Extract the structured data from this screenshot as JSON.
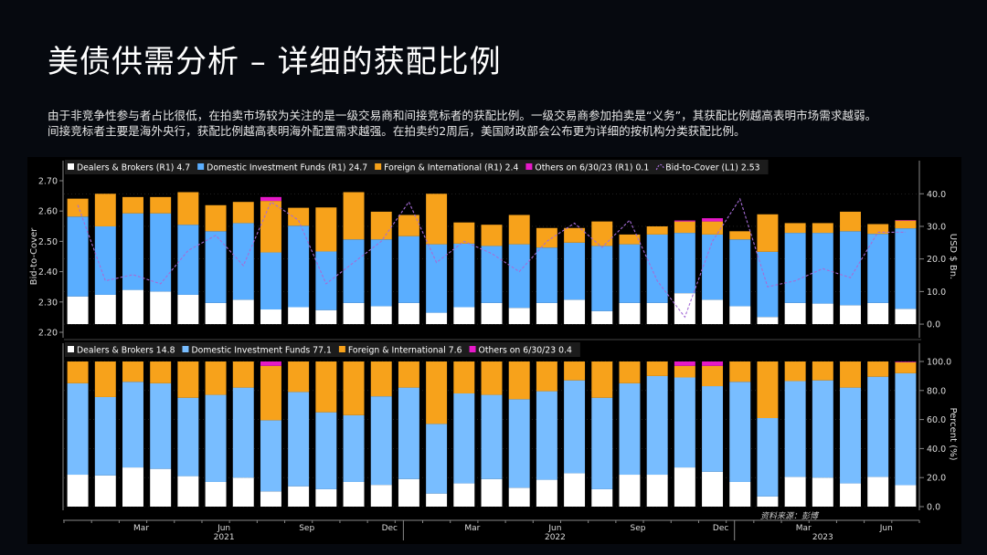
{
  "page": {
    "title": "美债供需分析 – 详细的获配比例",
    "description_line1": "由于非竞争性参与者占比很低，在拍卖市场较为关注的是一级交易商和间接竞标者的获配比例。一级交易商参加拍卖是“义务”，其获配比例越高表明市场需求越弱。",
    "description_line2": "间接竞标者主要是海外央行，获配比例越高表明海外配置需求越强。在拍卖约2周后，美国财政部会公布更为详细的按机构分类获配比例。",
    "source": "资料来源：彭博"
  },
  "colors": {
    "dealers": "#ffffff",
    "domestic": "#5aaeff",
    "domestic_pct": "#78bdff",
    "foreign": "#f7a21b",
    "others": "#e619c8",
    "btc": "#a56cd6",
    "axis": "#888888",
    "grid": "#333333"
  },
  "chart_data": [
    {
      "type": "bar",
      "stacked": true,
      "legend": [
        {
          "label": "Dealers & Brokers  (R1) 4.7",
          "color": "#ffffff",
          "shape": "square"
        },
        {
          "label": "Domestic Investment Funds (R1) 24.7",
          "color": "#5aaeff",
          "shape": "square"
        },
        {
          "label": "Foreign & International (R1) 2.4",
          "color": "#f7a21b",
          "shape": "square"
        },
        {
          "label": "Others on 6/30/23 (R1) 0.1",
          "color": "#e619c8",
          "shape": "square"
        },
        {
          "label": "Bid-to-Cover (L1) 2.53",
          "color": "#a56cd6",
          "shape": "line"
        }
      ],
      "legend_placement": "top-left",
      "ylabel_left": "Bid-to-Cover",
      "ylabel_right": "USD $ Bn.",
      "left_ticks": [
        "2.70",
        "2.60",
        "2.50",
        "2.40",
        "2.30",
        "2.20"
      ],
      "left_range": [
        2.2,
        2.7
      ],
      "right_ticks": [
        "40.0",
        "30.0",
        "20.0",
        "10.0",
        "0.0"
      ],
      "right_range": [
        -2.5,
        44
      ],
      "series": [
        {
          "name": "Dealers & Brokers",
          "color": "#ffffff",
          "values": [
            8.5,
            9,
            10.5,
            10,
            9,
            6.5,
            7.5,
            4.5,
            5.2,
            4.3,
            6.5,
            5.5,
            6.5,
            3.5,
            5.2,
            6.5,
            5,
            6.5,
            7.5,
            4,
            6.5,
            6.5,
            9.5,
            7.5,
            5.5,
            2.2,
            6.5,
            6.3,
            5.8,
            6.5,
            4.7
          ]
        },
        {
          "name": "Domestic Investment Funds",
          "color": "#5aaeff",
          "values": [
            24.5,
            21,
            23.5,
            24,
            21.5,
            22,
            23.5,
            17.5,
            25,
            18,
            19.5,
            20.5,
            20.5,
            21,
            19.5,
            17.5,
            19.5,
            17,
            17.5,
            20,
            18,
            21,
            18.5,
            20,
            20.5,
            20,
            21.5,
            21.7,
            22.7,
            21.2,
            24.7
          ]
        },
        {
          "name": "Foreign & International",
          "color": "#f7a21b",
          "values": [
            5.5,
            10,
            5,
            5,
            10,
            8,
            6.5,
            15.8,
            5.5,
            13.5,
            14.5,
            8.5,
            6.5,
            15.5,
            6.5,
            6.5,
            9,
            6,
            4.5,
            7.5,
            3,
            2.5,
            3.5,
            4,
            2.5,
            11.5,
            3,
            3,
            6,
            3,
            2.4
          ]
        },
        {
          "name": "Others on 6/30/23",
          "color": "#e619c8",
          "values": [
            0,
            0,
            0,
            0,
            0,
            0,
            0,
            1.2,
            0,
            0,
            0,
            0,
            0,
            0,
            0,
            0,
            0,
            0,
            0,
            0,
            0,
            0,
            0.3,
            1,
            0,
            0,
            0,
            0,
            0,
            0,
            0.1
          ]
        },
        {
          "name": "Bid-to-Cover",
          "color": "#a56cd6",
          "axis": "left",
          "style": "dashed-line",
          "values": [
            2.62,
            2.37,
            2.39,
            2.36,
            2.47,
            2.52,
            2.42,
            2.63,
            2.57,
            2.36,
            2.43,
            2.5,
            2.63,
            2.43,
            2.5,
            2.46,
            2.4,
            2.5,
            2.56,
            2.48,
            2.57,
            2.37,
            2.25,
            2.5,
            2.64,
            2.35,
            2.37,
            2.41,
            2.38,
            2.53,
            2.53
          ]
        }
      ]
    },
    {
      "type": "bar",
      "stacked": true,
      "legend": [
        {
          "label": "Dealers & Brokers 14.8",
          "color": "#ffffff",
          "shape": "square"
        },
        {
          "label": "Domestic Investment Funds 77.1",
          "color": "#78bdff",
          "shape": "square"
        },
        {
          "label": "Foreign & International 7.6",
          "color": "#f7a21b",
          "shape": "square"
        },
        {
          "label": "Others on 6/30/23 0.4",
          "color": "#e619c8",
          "shape": "square"
        }
      ],
      "legend_placement": "top-left",
      "ylabel_right": "Percent (%)",
      "right_ticks": [
        "100.0",
        "80.0",
        "60.0",
        "40.0",
        "20.0",
        "0.0"
      ],
      "right_range": [
        0,
        100
      ],
      "series": [
        {
          "name": "Dealers & Brokers",
          "color": "#ffffff",
          "values": [
            22,
            21.5,
            27,
            26,
            21,
            17,
            20,
            10.5,
            14,
            12,
            17,
            15,
            19,
            9,
            16,
            19,
            13,
            18.5,
            23,
            12,
            22,
            22,
            27,
            24,
            17,
            7,
            20.5,
            20,
            16,
            20.5,
            14.8
          ]
        },
        {
          "name": "Domestic Investment Funds",
          "color": "#78bdff",
          "values": [
            63,
            54,
            59,
            59,
            54,
            60,
            62,
            49,
            65,
            53,
            46,
            61,
            63,
            48,
            62,
            58,
            61,
            61,
            64,
            63,
            63,
            68,
            62,
            59,
            69,
            54,
            66,
            67,
            66,
            69,
            77.1
          ]
        },
        {
          "name": "Foreign & International",
          "color": "#f7a21b",
          "values": [
            15,
            24.5,
            14,
            15,
            25,
            23,
            18,
            37.5,
            21,
            35,
            37,
            24,
            18,
            43,
            22,
            23,
            26,
            20.5,
            13,
            25,
            15,
            10,
            8,
            14,
            14,
            39,
            13.5,
            13,
            18,
            10.5,
            7.6
          ]
        },
        {
          "name": "Others on 6/30/23",
          "color": "#e619c8",
          "values": [
            0,
            0,
            0,
            0,
            0,
            0,
            0,
            3,
            0,
            0,
            0,
            0,
            0,
            0,
            0,
            0,
            0,
            0,
            0,
            0,
            0,
            0,
            3,
            3,
            0,
            0,
            0,
            0,
            0,
            0,
            0.4
          ]
        }
      ]
    }
  ],
  "x_axis": {
    "month_labels": [
      {
        "label": "Mar",
        "index": 2.3
      },
      {
        "label": "Jun",
        "index": 5.3
      },
      {
        "label": "Sep",
        "index": 8.3
      },
      {
        "label": "Dec",
        "index": 11.3
      },
      {
        "label": "Mar",
        "index": 14.3
      },
      {
        "label": "Jun",
        "index": 17.3
      },
      {
        "label": "Sep",
        "index": 20.3
      },
      {
        "label": "Dec",
        "index": 23.3
      },
      {
        "label": "Mar",
        "index": 26.3
      },
      {
        "label": "Jun",
        "index": 29.3
      }
    ],
    "year_labels": [
      {
        "label": "2021",
        "index": 5.3
      },
      {
        "label": "2022",
        "index": 17.3
      },
      {
        "label": "2023",
        "index": 27.0
      }
    ],
    "year_dividers": [
      11.8,
      23.8
    ]
  }
}
